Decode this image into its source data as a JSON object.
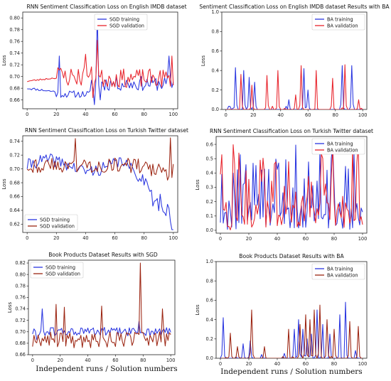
{
  "figure_caption": "Independent runs / Solution numbers",
  "colors": {
    "training": "#2a36e0",
    "validation_red": "#e8232b",
    "validation_brown": "#9c2512"
  },
  "chart_data": [
    {
      "type": "line",
      "title": "RNN Sentiment Classification Loss on English IMDB dataset",
      "ylabel": "Loss",
      "xlim": [
        -3,
        103
      ],
      "ylim": [
        0.645,
        0.81
      ],
      "xticks": [
        0,
        20,
        40,
        60,
        80,
        100
      ],
      "yticks": [
        0.66,
        0.68,
        0.7,
        0.72,
        0.74,
        0.76,
        0.78,
        0.8
      ],
      "ytick_labels": [
        "0.66",
        "0.68",
        "0.70",
        "0.72",
        "0.74",
        "0.76",
        "0.78",
        "0.80"
      ],
      "legend": "top-center",
      "series": [
        {
          "name": "SGD training",
          "color": "#2a36e0",
          "seed": 11,
          "mode": "imdb_train"
        },
        {
          "name": "SGD validation",
          "color": "#e8232b",
          "seed": 23,
          "mode": "imdb_val"
        }
      ]
    },
    {
      "type": "line",
      "title": "Sentiment Classification Loss on English IMDB dataset Results with BA",
      "ylabel": "Loss",
      "xlim": [
        -3,
        103
      ],
      "ylim": [
        0,
        1.0
      ],
      "xticks": [
        0,
        20,
        40,
        60,
        80,
        100
      ],
      "yticks": [
        0,
        0.2,
        0.4,
        0.6,
        0.8,
        1.0
      ],
      "ytick_labels": [
        "0.0",
        "0.2",
        "0.4",
        "0.6",
        "0.8",
        "1.0"
      ],
      "legend": "top-right",
      "series": [
        {
          "name": "BA training",
          "color": "#2a36e0",
          "seed": 31,
          "mode": "spike",
          "peaks": [
            [
              7,
              0.43
            ],
            [
              13,
              0.4
            ],
            [
              17,
              0.33
            ],
            [
              21,
              0.28
            ],
            [
              46,
              0.1
            ],
            [
              57,
              0.42
            ],
            [
              60,
              0.2
            ],
            [
              85,
              0.45
            ],
            [
              92,
              0.45
            ]
          ]
        },
        {
          "name": "BA validation",
          "color": "#e8232b",
          "seed": 37,
          "mode": "spike",
          "peaks": [
            [
              11,
              0.36
            ],
            [
              19,
              0.25
            ],
            [
              30,
              0.35
            ],
            [
              38,
              0.4
            ],
            [
              51,
              0.15
            ],
            [
              55,
              0.45
            ],
            [
              66,
              0.4
            ],
            [
              78,
              0.32
            ],
            [
              87,
              0.46
            ],
            [
              97,
              0.1
            ]
          ]
        }
      ]
    },
    {
      "type": "line",
      "title": "RNN Sentiment Classification Loss on Turkish Twitter dataset",
      "ylabel": "Loss",
      "xlim": [
        -3,
        103
      ],
      "ylim": [
        0.608,
        0.748
      ],
      "xticks": [
        0,
        20,
        40,
        60,
        80,
        100
      ],
      "yticks": [
        0.62,
        0.64,
        0.66,
        0.68,
        0.7,
        0.72,
        0.74
      ],
      "ytick_labels": [
        "0.62",
        "0.64",
        "0.66",
        "0.68",
        "0.70",
        "0.72",
        "0.74"
      ],
      "legend": "bottom-left",
      "series": [
        {
          "name": "SGD training",
          "color": "#2a36e0",
          "seed": 41,
          "mode": "tw_train"
        },
        {
          "name": "SGD validation",
          "color": "#9c2512",
          "seed": 43,
          "mode": "tw_val"
        }
      ]
    },
    {
      "type": "line",
      "title": "RNN Sentiment Classification Loss on Turkish Twitter dataset",
      "ylabel": "Loss",
      "xlim": [
        -3,
        103
      ],
      "ylim": [
        -0.02,
        0.655
      ],
      "xticks": [
        0,
        20,
        40,
        60,
        80,
        100
      ],
      "yticks": [
        0.0,
        0.1,
        0.2,
        0.3,
        0.4,
        0.5,
        0.6
      ],
      "ytick_labels": [
        "0.0",
        "0.1",
        "0.2",
        "0.3",
        "0.4",
        "0.5",
        "0.6"
      ],
      "legend": "top-right",
      "series": [
        {
          "name": "BA training",
          "color": "#2a36e0",
          "seed": 53,
          "mode": "dense"
        },
        {
          "name": "BA validation",
          "color": "#e8232b",
          "seed": 59,
          "mode": "dense"
        }
      ]
    },
    {
      "type": "line",
      "title": "Book Products Dataset Results with SGD",
      "ylabel": "Loss",
      "xlim": [
        -3,
        103
      ],
      "ylim": [
        0.66,
        0.825
      ],
      "xticks": [
        0,
        20,
        40,
        60,
        80,
        100
      ],
      "yticks": [
        0.66,
        0.68,
        0.7,
        0.72,
        0.74,
        0.76,
        0.78,
        0.8,
        0.82
      ],
      "ytick_labels": [
        "0.66",
        "0.68",
        "0.70",
        "0.72",
        "0.74",
        "0.76",
        "0.78",
        "0.80",
        "0.82"
      ],
      "legend": "top-left",
      "series": [
        {
          "name": "SGD training",
          "color": "#2a36e0",
          "seed": 61,
          "mode": "book_train"
        },
        {
          "name": "SGD validation",
          "color": "#9c2512",
          "seed": 67,
          "mode": "book_val"
        }
      ]
    },
    {
      "type": "line",
      "title": "Book Products Dataset Results with BA",
      "ylabel": "Loss",
      "xlim": [
        -3,
        103
      ],
      "ylim": [
        0,
        1.0
      ],
      "xticks": [
        0,
        20,
        40,
        60,
        80,
        100
      ],
      "yticks": [
        0,
        0.2,
        0.4,
        0.6,
        0.8,
        1.0
      ],
      "ytick_labels": [
        "0.0",
        "0.2",
        "0.4",
        "0.6",
        "0.8",
        "1.0"
      ],
      "legend": "top-right",
      "series": [
        {
          "name": "BA training",
          "color": "#2a36e0",
          "seed": 71,
          "mode": "spike",
          "peaks": [
            [
              2,
              0.42
            ],
            [
              16,
              0.15
            ],
            [
              21,
              0.18
            ],
            [
              45,
              0.05
            ],
            [
              52,
              0.3
            ],
            [
              55,
              0.4
            ],
            [
              58,
              0.3
            ],
            [
              61,
              0.2
            ],
            [
              64,
              0.25
            ],
            [
              68,
              0.5
            ],
            [
              72,
              0.35
            ],
            [
              77,
              0.25
            ],
            [
              84,
              0.45
            ],
            [
              88,
              0.58
            ],
            [
              95,
              0.08
            ]
          ]
        },
        {
          "name": "BA validation",
          "color": "#9c2512",
          "seed": 73,
          "mode": "spike",
          "peaks": [
            [
              7,
              0.26
            ],
            [
              12,
              0.12
            ],
            [
              22,
              0.5
            ],
            [
              31,
              0.12
            ],
            [
              48,
              0.3
            ],
            [
              56,
              0.35
            ],
            [
              60,
              0.45
            ],
            [
              63,
              0.4
            ],
            [
              66,
              0.5
            ],
            [
              70,
              0.55
            ],
            [
              75,
              0.4
            ],
            [
              80,
              0.3
            ],
            [
              91,
              0.38
            ],
            [
              97,
              0.33
            ]
          ]
        }
      ]
    }
  ]
}
